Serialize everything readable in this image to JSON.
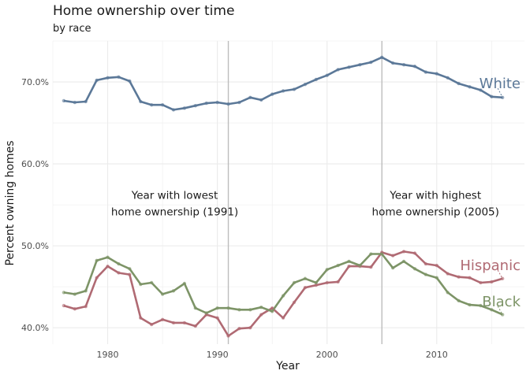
{
  "chart_data": {
    "type": "line",
    "title": "Home ownership over time",
    "subtitle": "by race",
    "xlabel": "Year",
    "ylabel": "Percent owning homes",
    "xlim": [
      1975,
      2018
    ],
    "ylim": [
      0.38,
      0.75
    ],
    "x_ticks": [
      1980,
      1990,
      2000,
      2010
    ],
    "x_tick_labels": [
      "1980",
      "1990",
      "2000",
      "2010"
    ],
    "y_ticks": [
      0.4,
      0.5,
      0.6,
      0.7
    ],
    "y_tick_labels": [
      "40.0%",
      "50.0%",
      "60.0%",
      "70.0%"
    ],
    "grid": true,
    "legend": "none (direct labels at line ends)",
    "years": [
      1976,
      1977,
      1978,
      1979,
      1980,
      1981,
      1982,
      1983,
      1984,
      1985,
      1986,
      1987,
      1988,
      1989,
      1990,
      1991,
      1992,
      1993,
      1994,
      1995,
      1996,
      1997,
      1998,
      1999,
      2000,
      2001,
      2002,
      2003,
      2004,
      2005,
      2006,
      2007,
      2008,
      2009,
      2010,
      2011,
      2012,
      2013,
      2014,
      2015,
      2016
    ],
    "series": [
      {
        "name": "White",
        "color": "#5b7898",
        "values": [
          0.677,
          0.675,
          0.676,
          0.702,
          0.705,
          0.706,
          0.701,
          0.676,
          0.672,
          0.672,
          0.666,
          0.668,
          0.671,
          0.674,
          0.675,
          0.673,
          0.675,
          0.681,
          0.678,
          0.685,
          0.689,
          0.691,
          0.697,
          0.703,
          0.708,
          0.715,
          0.718,
          0.721,
          0.724,
          0.73,
          0.723,
          0.721,
          0.719,
          0.712,
          0.71,
          0.705,
          0.698,
          0.694,
          0.69,
          0.682,
          0.681
        ]
      },
      {
        "name": "Hispanic",
        "color": "#b06a73",
        "values": [
          0.427,
          0.423,
          0.426,
          0.461,
          0.475,
          0.467,
          0.465,
          0.412,
          0.404,
          0.41,
          0.406,
          0.406,
          0.402,
          0.416,
          0.412,
          0.39,
          0.399,
          0.4,
          0.416,
          0.424,
          0.412,
          0.431,
          0.449,
          0.452,
          0.455,
          0.456,
          0.475,
          0.475,
          0.474,
          0.492,
          0.488,
          0.493,
          0.491,
          0.478,
          0.476,
          0.466,
          0.462,
          0.461,
          0.455,
          0.456,
          0.46
        ]
      },
      {
        "name": "Black",
        "color": "#7d9467",
        "values": [
          0.443,
          0.441,
          0.445,
          0.482,
          0.486,
          0.478,
          0.472,
          0.453,
          0.455,
          0.441,
          0.445,
          0.454,
          0.424,
          0.418,
          0.424,
          0.424,
          0.422,
          0.422,
          0.425,
          0.42,
          0.439,
          0.455,
          0.46,
          0.455,
          0.471,
          0.476,
          0.481,
          0.476,
          0.49,
          0.49,
          0.473,
          0.481,
          0.472,
          0.465,
          0.461,
          0.443,
          0.433,
          0.428,
          0.427,
          0.422,
          0.416
        ]
      }
    ],
    "annotations": [
      {
        "x": 1991,
        "line1": "Year with lowest",
        "line2": "home ownership (1991)",
        "y": 0.56
      },
      {
        "x": 2005,
        "line1": "Year with highest",
        "line2": "home ownership (2005)",
        "y": 0.56
      }
    ],
    "colors": {
      "background": "#ffffff",
      "grid": "#ebebeb",
      "vline": "#bdbdbd",
      "text": "#1a1a1a",
      "tick_text": "#4d4d4d"
    }
  }
}
